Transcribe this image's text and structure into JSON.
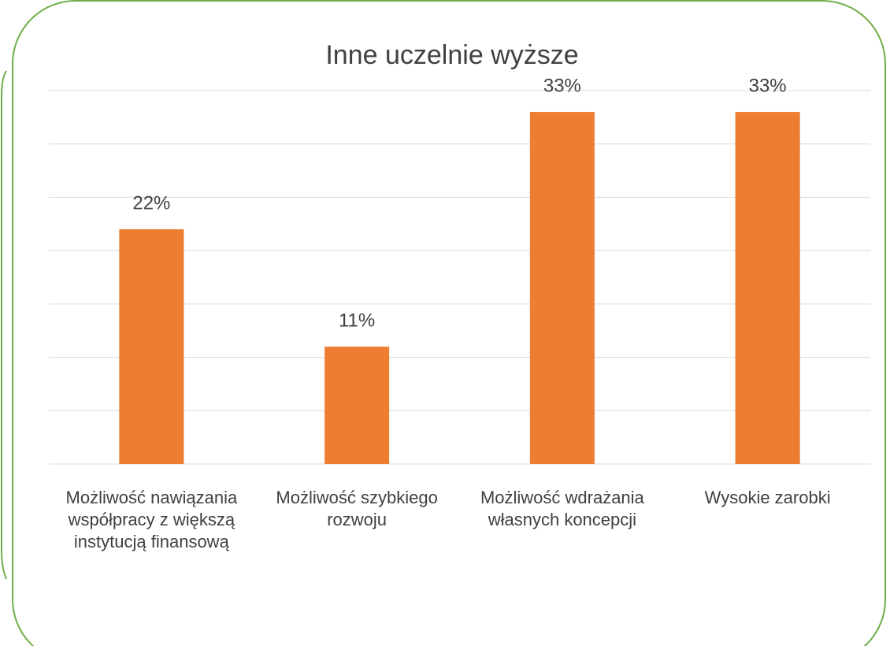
{
  "chart_data": {
    "type": "bar",
    "title": "Inne uczelnie wyższe",
    "categories": [
      "Możliwość nawiązania współpracy z większą instytucją finansową",
      "Możliwość szybkiego rozwoju",
      "Możliwość wdrażania własnych koncepcji",
      "Wysokie zarobki"
    ],
    "values": [
      22,
      11,
      33,
      33
    ],
    "value_labels": [
      "22%",
      "11%",
      "33%",
      "33%"
    ],
    "color": "#ed7d31",
    "ylim": [
      0,
      35
    ],
    "yticks": [
      0,
      5,
      10,
      15,
      20,
      25,
      30,
      35
    ],
    "grid": true
  }
}
